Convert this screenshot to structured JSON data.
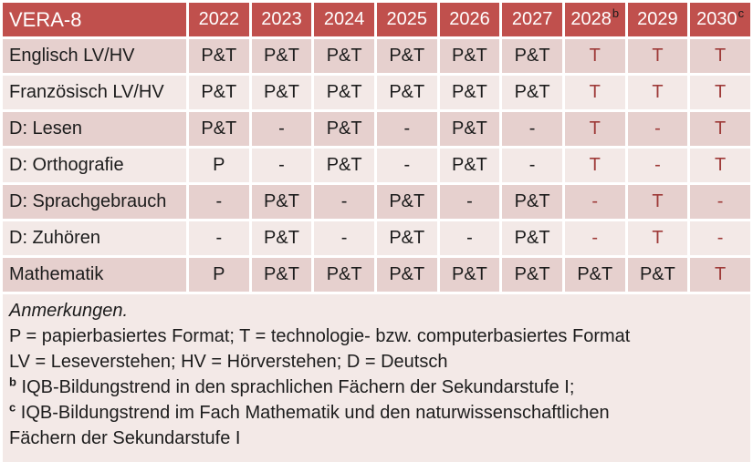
{
  "colors": {
    "header_bg": "#C0504D",
    "header_text": "#FFFFFF",
    "band_dark": "#E6D0CE",
    "band_light": "#F3E9E7",
    "text_dark": "#1C1C1C",
    "text_red": "#9E3A38",
    "gap_white": "#FFFFFF"
  },
  "table": {
    "title": "VERA-8",
    "years": [
      {
        "label": "2022",
        "sup": ""
      },
      {
        "label": "2023",
        "sup": ""
      },
      {
        "label": "2024",
        "sup": ""
      },
      {
        "label": "2025",
        "sup": ""
      },
      {
        "label": "2026",
        "sup": ""
      },
      {
        "label": "2027",
        "sup": ""
      },
      {
        "label": "2028",
        "sup": "b"
      },
      {
        "label": "2029",
        "sup": ""
      },
      {
        "label": "2030",
        "sup": "c"
      }
    ],
    "rows": [
      {
        "label": "Englisch LV/HV",
        "cells": [
          {
            "t": "P&T"
          },
          {
            "t": "P&T"
          },
          {
            "t": "P&T"
          },
          {
            "t": "P&T"
          },
          {
            "t": "P&T"
          },
          {
            "t": "P&T"
          },
          {
            "t": "T",
            "red": true
          },
          {
            "t": "T",
            "red": true
          },
          {
            "t": "T",
            "red": true
          }
        ]
      },
      {
        "label": "Französisch LV/HV",
        "cells": [
          {
            "t": "P&T"
          },
          {
            "t": "P&T"
          },
          {
            "t": "P&T"
          },
          {
            "t": "P&T"
          },
          {
            "t": "P&T"
          },
          {
            "t": "P&T"
          },
          {
            "t": "T",
            "red": true
          },
          {
            "t": "T",
            "red": true
          },
          {
            "t": "T",
            "red": true
          }
        ]
      },
      {
        "label": "D: Lesen",
        "cells": [
          {
            "t": "P&T"
          },
          {
            "t": "-"
          },
          {
            "t": "P&T"
          },
          {
            "t": "-"
          },
          {
            "t": "P&T"
          },
          {
            "t": "-"
          },
          {
            "t": "T",
            "red": true
          },
          {
            "t": "-",
            "red": true
          },
          {
            "t": "T",
            "red": true
          }
        ]
      },
      {
        "label": "D: Orthografie",
        "cells": [
          {
            "t": "P"
          },
          {
            "t": "-"
          },
          {
            "t": "P&T"
          },
          {
            "t": "-"
          },
          {
            "t": "P&T"
          },
          {
            "t": "-"
          },
          {
            "t": "T",
            "red": true
          },
          {
            "t": "-",
            "red": true
          },
          {
            "t": "T",
            "red": true
          }
        ]
      },
      {
        "label": "D: Sprachgebrauch",
        "cells": [
          {
            "t": "-"
          },
          {
            "t": "P&T"
          },
          {
            "t": "-"
          },
          {
            "t": "P&T"
          },
          {
            "t": "-"
          },
          {
            "t": "P&T"
          },
          {
            "t": "-",
            "red": true
          },
          {
            "t": "T",
            "red": true
          },
          {
            "t": "-",
            "red": true
          }
        ]
      },
      {
        "label": "D: Zuhören",
        "cells": [
          {
            "t": "-"
          },
          {
            "t": "P&T"
          },
          {
            "t": "-"
          },
          {
            "t": "P&T"
          },
          {
            "t": "-"
          },
          {
            "t": "P&T"
          },
          {
            "t": "-",
            "red": true
          },
          {
            "t": "T",
            "red": true
          },
          {
            "t": "-",
            "red": true
          }
        ]
      },
      {
        "label": "Mathematik",
        "cells": [
          {
            "t": "P"
          },
          {
            "t": "P&T"
          },
          {
            "t": "P&T"
          },
          {
            "t": "P&T"
          },
          {
            "t": "P&T"
          },
          {
            "t": "P&T"
          },
          {
            "t": "P&T"
          },
          {
            "t": "P&T"
          },
          {
            "t": "T",
            "red": true
          }
        ]
      }
    ]
  },
  "notes": {
    "heading": "Anmerkungen.",
    "lines": [
      {
        "sup": "",
        "text": "P = papierbasiertes Format; T = technologie- bzw. computerbasiertes Format"
      },
      {
        "sup": "",
        "text": "LV = Leseverstehen; HV = Hörverstehen; D = Deutsch"
      },
      {
        "sup": "b",
        "text": "IQB-Bildungstrend in den sprachlichen Fächern der Sekundarstufe I;"
      },
      {
        "sup": "c",
        "text": "IQB-Bildungstrend im Fach Mathematik und den naturwissenschaftlichen"
      },
      {
        "sup": "",
        "text": "Fächern der Sekundarstufe I"
      }
    ]
  }
}
